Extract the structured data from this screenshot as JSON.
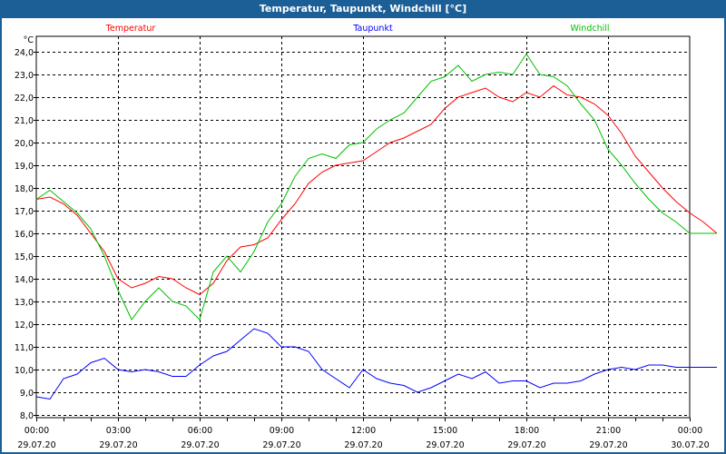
{
  "window_title": "Temperatur, Taupunkt, Windchill [°C]",
  "chart_data": {
    "type": "line",
    "title": "Temperatur, Taupunkt, Windchill [°C]",
    "ylabel": "°C",
    "ylim": [
      8.0,
      24.0
    ],
    "xlim_hours": [
      0,
      24
    ],
    "grid": true,
    "legend_placement": "top",
    "y_ticks": [
      "8,0",
      "9,0",
      "10,0",
      "11,0",
      "12,0",
      "13,0",
      "14,0",
      "15,0",
      "16,0",
      "17,0",
      "18,0",
      "19,0",
      "20,0",
      "21,0",
      "22,0",
      "23,0",
      "24,0"
    ],
    "x_ticks": [
      {
        "time": "00:00",
        "date": "29.07.20"
      },
      {
        "time": "03:00",
        "date": "29.07.20"
      },
      {
        "time": "06:00",
        "date": "29.07.20"
      },
      {
        "time": "09:00",
        "date": "29.07.20"
      },
      {
        "time": "12:00",
        "date": "29.07.20"
      },
      {
        "time": "15:00",
        "date": "29.07.20"
      },
      {
        "time": "18:00",
        "date": "29.07.20"
      },
      {
        "time": "21:00",
        "date": "29.07.20"
      },
      {
        "time": "00:00",
        "date": "30.07.20"
      }
    ],
    "x_step_hours": 0.5,
    "series": [
      {
        "name": "Temperatur",
        "color": "#ff0000",
        "values": [
          17.5,
          17.6,
          17.3,
          16.8,
          16.0,
          15.2,
          14.0,
          13.6,
          13.8,
          14.1,
          14.0,
          13.6,
          13.3,
          13.8,
          14.8,
          15.4,
          15.5,
          15.8,
          16.6,
          17.3,
          18.2,
          18.7,
          19.0,
          19.1,
          19.2,
          19.6,
          20.0,
          20.2,
          20.5,
          20.8,
          21.5,
          22.0,
          22.2,
          22.4,
          22.0,
          21.8,
          22.2,
          22.0,
          22.5,
          22.1,
          22.0,
          21.7,
          21.2,
          20.4,
          19.4,
          18.7,
          18.0,
          17.4,
          16.9,
          16.5,
          16.0
        ]
      },
      {
        "name": "Taupunkt",
        "color": "#0000ff",
        "values": [
          8.8,
          8.7,
          9.6,
          9.8,
          10.3,
          10.5,
          10.0,
          9.9,
          10.0,
          9.9,
          9.7,
          9.7,
          10.2,
          10.6,
          10.8,
          11.3,
          11.8,
          11.6,
          11.0,
          11.0,
          10.8,
          10.0,
          9.6,
          9.2,
          10.0,
          9.6,
          9.4,
          9.3,
          9.0,
          9.2,
          9.5,
          9.8,
          9.6,
          9.9,
          9.4,
          9.5,
          9.5,
          9.2,
          9.4,
          9.4,
          9.5,
          9.8,
          10.0,
          10.1,
          10.0,
          10.2,
          10.2,
          10.1,
          10.1,
          10.1,
          10.1
        ]
      },
      {
        "name": "Windchill",
        "color": "#00c000",
        "values": [
          17.5,
          17.9,
          17.4,
          16.9,
          16.2,
          15.0,
          13.5,
          12.2,
          13.0,
          13.6,
          13.0,
          12.8,
          12.2,
          14.3,
          15.0,
          14.3,
          15.2,
          16.5,
          17.3,
          18.5,
          19.3,
          19.5,
          19.3,
          19.9,
          20.0,
          20.6,
          21.0,
          21.3,
          22.0,
          22.7,
          22.9,
          23.4,
          22.7,
          23.0,
          23.1,
          23.0,
          23.9,
          23.0,
          22.9,
          22.5,
          21.7,
          21.0,
          19.7,
          19.0,
          18.2,
          17.5,
          16.9,
          16.5,
          16.0,
          16.0,
          16.0
        ]
      }
    ],
    "legend": [
      {
        "label": "Temperatur",
        "color": "#ff0000"
      },
      {
        "label": "Taupunkt",
        "color": "#0000ff"
      },
      {
        "label": "Windchill",
        "color": "#00c000"
      }
    ]
  }
}
